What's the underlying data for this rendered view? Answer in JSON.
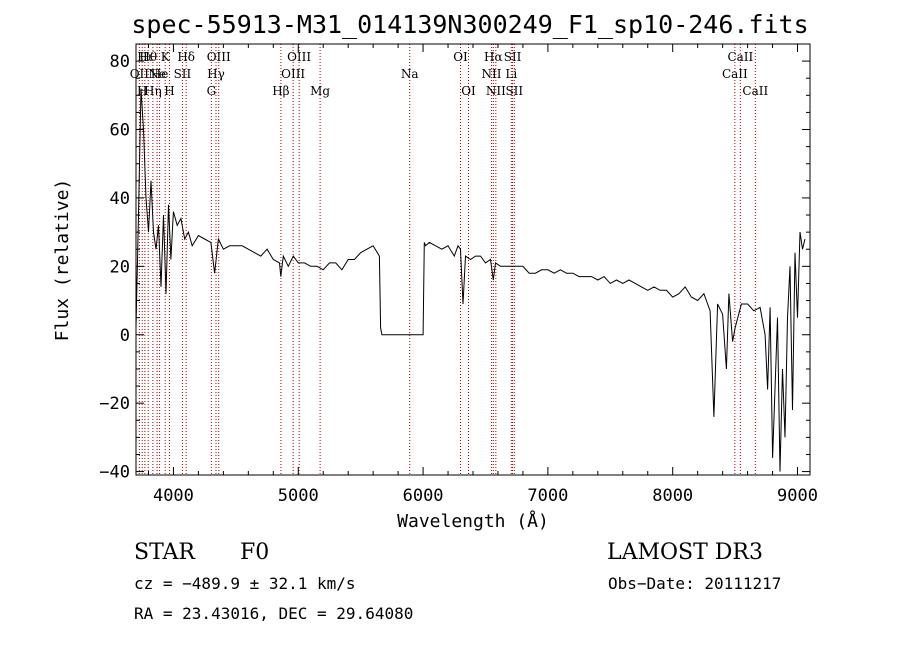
{
  "chart_data": {
    "type": "line",
    "title": "spec-55913-M31_014139N300249_F1_sp10-246.fits",
    "xlabel": "Wavelength (Å)",
    "ylabel": "Flux (relative)",
    "xlim": [
      3700,
      9100
    ],
    "ylim": [
      -41,
      85
    ],
    "xticks": [
      4000,
      5000,
      6000,
      7000,
      8000,
      9000
    ],
    "yticks": [
      -40,
      -20,
      0,
      20,
      40,
      60,
      80
    ],
    "series": [
      {
        "color": "#000000",
        "x": [
          3700,
          3720,
          3740,
          3760,
          3780,
          3800,
          3820,
          3840,
          3860,
          3880,
          3900,
          3920,
          3940,
          3960,
          3980,
          4000,
          4030,
          4060,
          4090,
          4120,
          4150,
          4200,
          4250,
          4300,
          4330,
          4360,
          4400,
          4450,
          4500,
          4550,
          4600,
          4650,
          4700,
          4750,
          4800,
          4850,
          4860,
          4880,
          4920,
          4960,
          5000,
          5050,
          5100,
          5150,
          5200,
          5250,
          5300,
          5350,
          5400,
          5450,
          5500,
          5550,
          5600,
          5650,
          5660,
          5670,
          5700,
          5800,
          5900,
          6000,
          6010,
          6020,
          6050,
          6100,
          6150,
          6200,
          6250,
          6280,
          6300,
          6320,
          6340,
          6380,
          6420,
          6460,
          6500,
          6540,
          6563,
          6580,
          6620,
          6660,
          6700,
          6750,
          6800,
          6850,
          6900,
          6950,
          7000,
          7050,
          7100,
          7150,
          7200,
          7250,
          7300,
          7350,
          7400,
          7450,
          7500,
          7550,
          7600,
          7650,
          7700,
          7750,
          7800,
          7850,
          7900,
          7950,
          8000,
          8050,
          8100,
          8150,
          8200,
          8250,
          8300,
          8330,
          8360,
          8400,
          8430,
          8450,
          8480,
          8500,
          8550,
          8600,
          8650,
          8700,
          8720,
          8740,
          8760,
          8780,
          8800,
          8820,
          8840,
          8860,
          8880,
          8900,
          8920,
          8940,
          8960,
          8980,
          9000,
          9020,
          9040,
          9060
        ],
        "y": [
          2,
          35,
          72,
          60,
          40,
          30,
          45,
          30,
          25,
          32,
          14,
          35,
          12,
          38,
          22,
          36,
          32,
          34,
          28,
          30,
          26,
          29,
          28,
          27,
          18,
          28,
          25,
          26,
          26,
          26,
          25,
          24,
          23,
          25,
          22,
          21,
          17,
          23,
          20,
          23,
          21,
          21,
          20,
          20,
          19,
          21,
          21,
          19,
          22,
          22,
          24,
          25,
          26,
          23,
          2,
          0,
          0,
          0,
          0,
          0,
          27,
          26,
          27,
          26,
          25,
          26,
          23,
          26,
          25,
          9,
          23,
          22,
          23,
          23,
          21,
          22,
          16,
          21,
          20,
          20,
          20,
          20,
          20,
          18,
          18,
          19,
          19,
          18,
          19,
          18,
          18,
          17,
          17,
          17,
          16,
          17,
          15,
          16,
          15,
          16,
          15,
          14,
          13,
          14,
          13,
          13,
          11,
          12,
          14,
          11,
          10,
          12,
          7,
          -24,
          9,
          6,
          -10,
          12,
          -2,
          2,
          9,
          9,
          7,
          8,
          4,
          0,
          -16,
          8,
          -36,
          -15,
          5,
          -40,
          -10,
          -30,
          5,
          20,
          -22,
          24,
          5,
          30,
          25,
          28
        ]
      }
    ],
    "spectral_lines": [
      {
        "wavelength": 3727,
        "label": "OII",
        "row": 1
      },
      {
        "wavelength": 3750,
        "label": "H",
        "row": 2
      },
      {
        "wavelength": 3771,
        "label": "Hι",
        "row": 0
      },
      {
        "wavelength": 3798,
        "label": "Hθ",
        "row": 0
      },
      {
        "wavelength": 3835,
        "label": "Hη",
        "row": 2
      },
      {
        "wavelength": 3869,
        "label": "Ne",
        "row": 1
      },
      {
        "wavelength": 3889,
        "label": "He",
        "row": 1
      },
      {
        "wavelength": 3934,
        "label": "K",
        "row": 0
      },
      {
        "wavelength": 3968,
        "label": "H",
        "row": 2
      },
      {
        "wavelength": 4072,
        "label": "SII",
        "row": 1
      },
      {
        "wavelength": 4102,
        "label": "Hδ",
        "row": 0
      },
      {
        "wavelength": 4304,
        "label": "G",
        "row": 2
      },
      {
        "wavelength": 4341,
        "label": "Hγ",
        "row": 1
      },
      {
        "wavelength": 4363,
        "label": "OIII",
        "row": 0
      },
      {
        "wavelength": 4861,
        "label": "Hβ",
        "row": 2
      },
      {
        "wavelength": 4959,
        "label": "OIII",
        "row": 1
      },
      {
        "wavelength": 5007,
        "label": "OIII",
        "row": 0
      },
      {
        "wavelength": 5175,
        "label": "Mg",
        "row": 2
      },
      {
        "wavelength": 5893,
        "label": "Na",
        "row": 1
      },
      {
        "wavelength": 6300,
        "label": "OI",
        "row": 0
      },
      {
        "wavelength": 6364,
        "label": "OI",
        "row": 2
      },
      {
        "wavelength": 6548,
        "label": "NII",
        "row": 1
      },
      {
        "wavelength": 6563,
        "label": "Hα",
        "row": 0
      },
      {
        "wavelength": 6583,
        "label": "NII",
        "row": 2
      },
      {
        "wavelength": 6707,
        "label": "Li",
        "row": 1
      },
      {
        "wavelength": 6717,
        "label": "SII",
        "row": 0
      },
      {
        "wavelength": 6731,
        "label": "SII",
        "row": 2
      },
      {
        "wavelength": 8498,
        "label": "CaII",
        "row": 1
      },
      {
        "wavelength": 8542,
        "label": "CaII",
        "row": 0
      },
      {
        "wavelength": 8662,
        "label": "CaII",
        "row": 2
      }
    ],
    "line_color": "#b00000"
  },
  "info": {
    "class": "STAR",
    "subclass": "F0",
    "survey": "LAMOST DR3",
    "cz": "cz = −489.9 ± 32.1 km/s",
    "obs_date": "Obs−Date: 20111217",
    "coords": "RA =  23.43016, DEC =  29.64080"
  }
}
